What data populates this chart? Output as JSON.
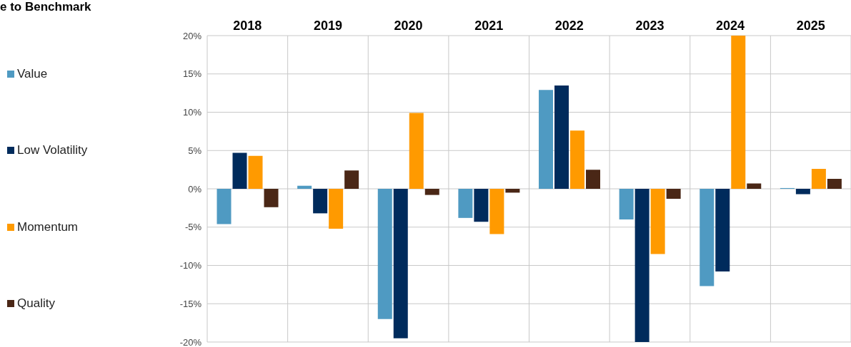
{
  "chart_data": {
    "type": "bar",
    "title": "e to Benchmark",
    "categories": [
      "2018",
      "2019",
      "2020",
      "2021",
      "2022",
      "2023",
      "2024",
      "2025"
    ],
    "series": [
      {
        "name": "Value",
        "color": "#4f9ac2",
        "values": [
          -4.6,
          0.4,
          -17.0,
          -3.8,
          12.9,
          -4.0,
          -12.7,
          0.1
        ]
      },
      {
        "name": "Low Volatility",
        "color": "#002b5c",
        "values": [
          4.7,
          -3.2,
          -19.5,
          -4.3,
          13.5,
          -20,
          -10.8,
          -0.7
        ]
      },
      {
        "name": "Momentum",
        "color": "#ff9a00",
        "values": [
          4.3,
          -5.2,
          9.9,
          -5.9,
          7.6,
          -8.5,
          20,
          2.6
        ]
      },
      {
        "name": "Quality",
        "color": "#4a2716",
        "values": [
          -2.4,
          2.4,
          -0.8,
          -0.5,
          2.5,
          -1.3,
          0.7,
          1.3
        ]
      }
    ],
    "ylim": [
      -20,
      20
    ],
    "yticks": [
      {
        "value": -20,
        "label": "-20%"
      },
      {
        "value": -15,
        "label": "-15%"
      },
      {
        "value": -10,
        "label": "-10%"
      },
      {
        "value": -5,
        "label": "-5%"
      },
      {
        "value": 0,
        "label": "0%"
      },
      {
        "value": 5,
        "label": "5%"
      },
      {
        "value": 10,
        "label": "10%"
      },
      {
        "value": 15,
        "label": "15%"
      },
      {
        "value": 20,
        "label": "20%"
      }
    ],
    "grid": true,
    "legend": "left"
  }
}
